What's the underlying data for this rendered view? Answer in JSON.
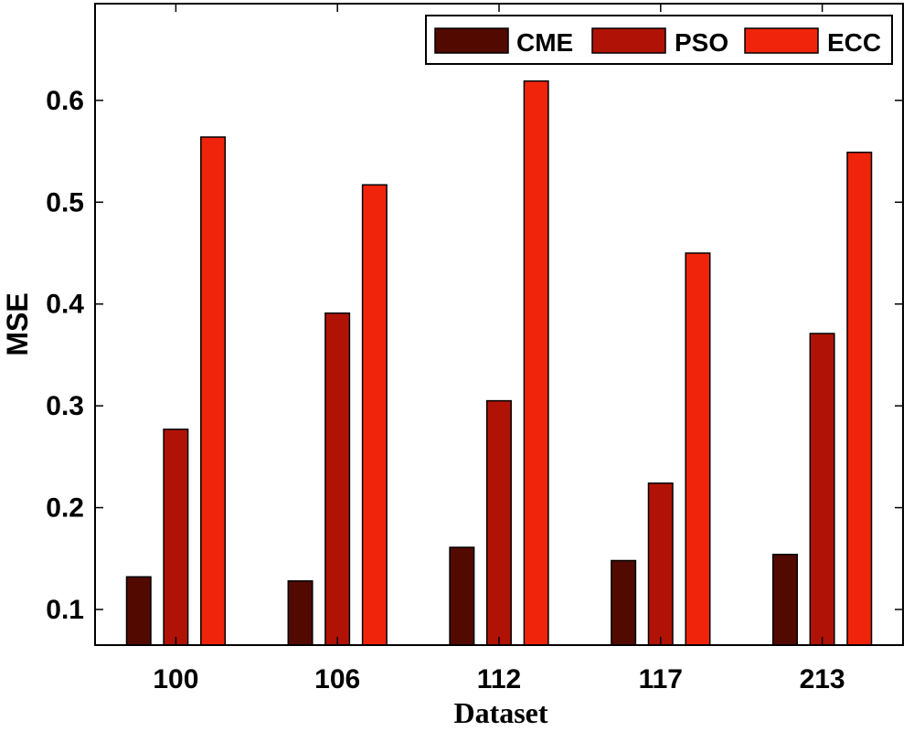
{
  "chart_data": {
    "type": "bar",
    "title": "",
    "xlabel": "Dataset",
    "ylabel": "MSE",
    "categories": [
      "100",
      "106",
      "112",
      "117",
      "213"
    ],
    "series": [
      {
        "name": "CME",
        "color": "#520a00",
        "values": [
          0.132,
          0.128,
          0.161,
          0.148,
          0.154
        ]
      },
      {
        "name": "PSO",
        "color": "#b01306",
        "values": [
          0.277,
          0.391,
          0.305,
          0.224,
          0.371
        ]
      },
      {
        "name": "ECC",
        "color": "#f0240a",
        "values": [
          0.564,
          0.517,
          0.619,
          0.45,
          0.549
        ]
      }
    ],
    "ylim": [
      0.065,
      0.695
    ],
    "yticks": [
      0.1,
      0.2,
      0.3,
      0.4,
      0.5,
      0.6
    ],
    "ytick_labels": [
      "0.1",
      "0.2",
      "0.3",
      "0.4",
      "0.5",
      "0.6"
    ],
    "grid": false,
    "legend_position": "top-right"
  }
}
